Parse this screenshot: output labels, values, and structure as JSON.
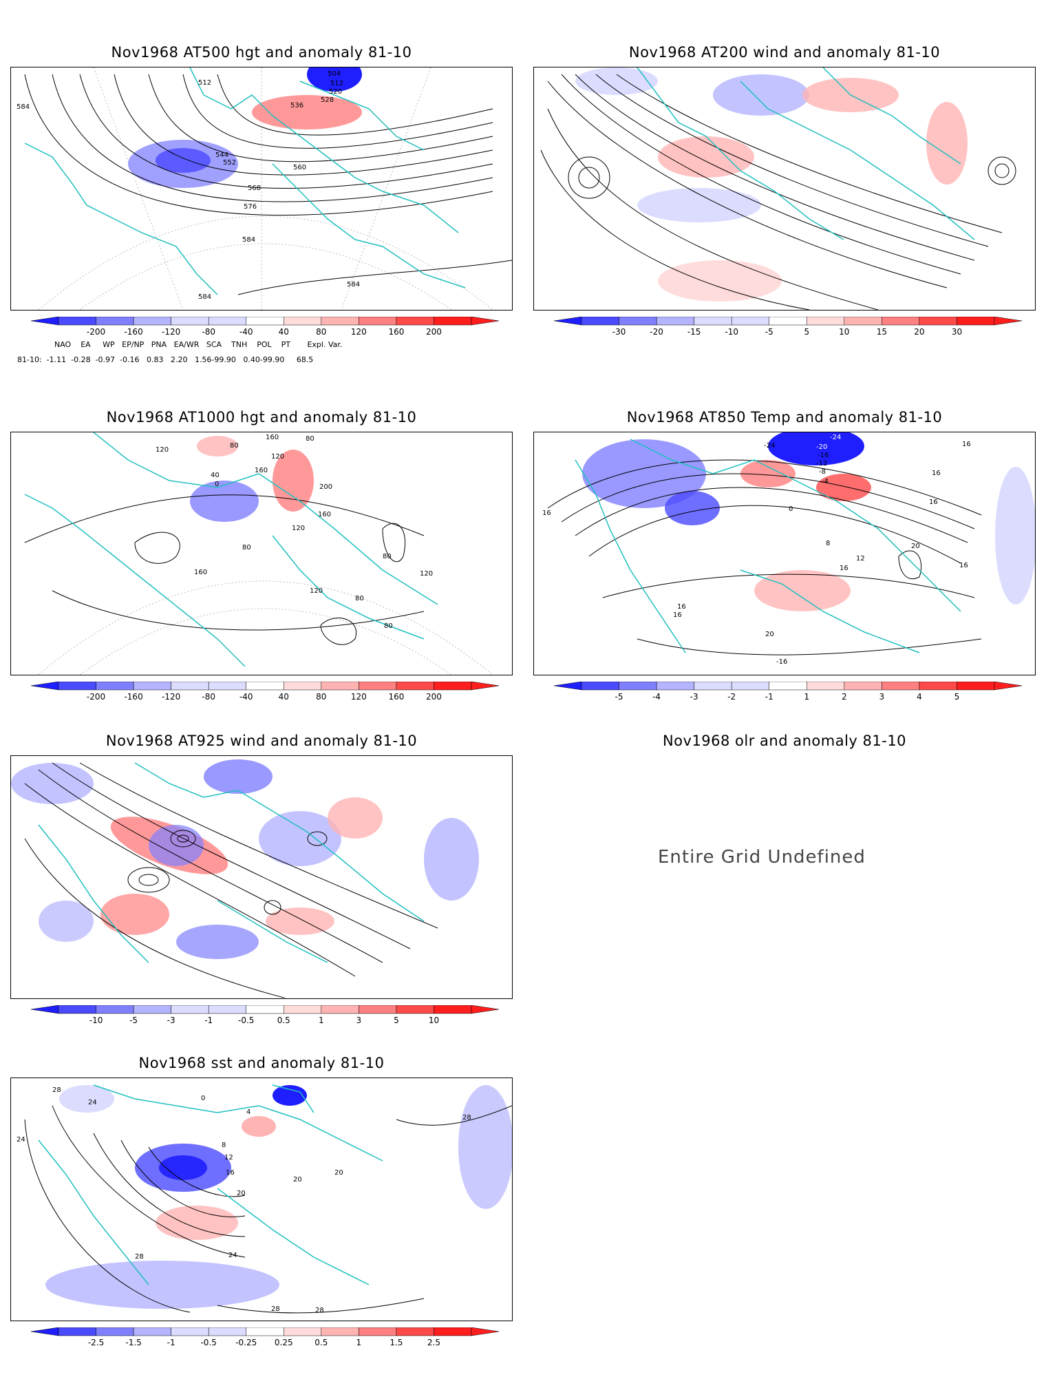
{
  "panels": {
    "p1": {
      "title": "Nov1968 AT500 hgt and anomaly 81-10",
      "contour_labels": [
        "504",
        "512",
        "520",
        "528",
        "536",
        "512",
        "544",
        "552",
        "560",
        "568",
        "576",
        "584",
        "584",
        "584",
        "584"
      ]
    },
    "p2": {
      "title": "Nov1968 AT200 wind and anomaly 81-10"
    },
    "p3": {
      "title": "Nov1968 AT1000 hgt and anomaly 81-10",
      "contour_labels": [
        "160",
        "80",
        "120",
        "40",
        "80",
        "160",
        "0",
        "120",
        "200",
        "160",
        "120",
        "80",
        "160",
        "80",
        "120",
        "120",
        "80",
        "80"
      ]
    },
    "p4": {
      "title": "Nov1968 AT850 Temp and anomaly 81-10",
      "contour_labels": [
        "-24",
        "-24",
        "-20",
        "-16",
        "-12",
        "-8",
        "-4",
        "0",
        "16",
        "16",
        "16",
        "16",
        "8",
        "12",
        "20",
        "16",
        "20",
        "16",
        "16",
        "-16",
        "16"
      ]
    },
    "p5": {
      "title": "Nov1968 AT925 wind and anomaly 81-10"
    },
    "p6": {
      "title": "Nov1968 olr and anomaly 81-10",
      "message": "Entire Grid Undefined"
    },
    "p7": {
      "title": "Nov1968 sst and anomaly 81-10",
      "contour_labels": [
        "28",
        "24",
        "24",
        "0",
        "4",
        "8",
        "12",
        "16",
        "20",
        "24",
        "28",
        "28",
        "28",
        "20",
        "20",
        "28"
      ]
    }
  },
  "colorbars": {
    "cb1": [
      "-200",
      "-160",
      "-120",
      "-80",
      "-40",
      "40",
      "80",
      "120",
      "160",
      "200"
    ],
    "cb2": [
      "-30",
      "-20",
      "-15",
      "-10",
      "-5",
      "5",
      "10",
      "15",
      "20",
      "30"
    ],
    "cb3": [
      "-200",
      "-160",
      "-120",
      "-80",
      "-40",
      "40",
      "80",
      "120",
      "160",
      "200"
    ],
    "cb4": [
      "-5",
      "-4",
      "-3",
      "-2",
      "-1",
      "1",
      "2",
      "3",
      "4",
      "5"
    ],
    "cb5": [
      "-10",
      "-5",
      "-3",
      "-1",
      "-0.5",
      "0.5",
      "1",
      "3",
      "5",
      "10"
    ],
    "cb7": [
      "-2.5",
      "-1.5",
      "-1",
      "-0.5",
      "-0.25",
      "0.25",
      "0.5",
      "1",
      "1.5",
      "2.5"
    ]
  },
  "colors": {
    "neg": [
      "#1e1eff",
      "#4a4aff",
      "#8080ff",
      "#b4b4ff",
      "#dcdcff"
    ],
    "pos": [
      "#ffdcdc",
      "#ffb4b4",
      "#ff8080",
      "#ff4a4a",
      "#ff1e1e"
    ],
    "coast": "#1fbfbf"
  },
  "indices": {
    "header": "    NAO    EA     WP   EP/NP   PNA   EA/WR   SCA    TNH    POL    PT       Expl. Var.",
    "values": "81-10:  -1.11  -0.28  -0.97  -0.16   0.83   2.20   1.56-99.90   0.40-99.90     68.5"
  }
}
